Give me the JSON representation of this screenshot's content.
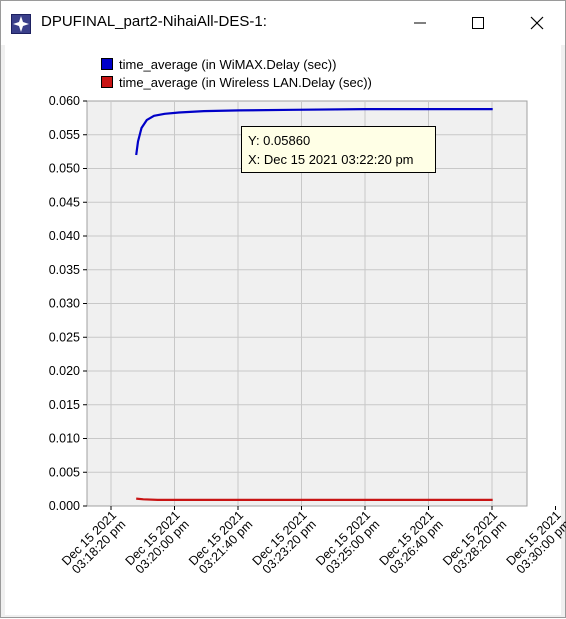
{
  "window": {
    "title": "DPUFINAL_part2-NihaiAll-DES-1:",
    "icon": "opnet-star-icon"
  },
  "legend": [
    {
      "label": "time_average (in WiMAX.Delay (sec))",
      "color": "#0000c8"
    },
    {
      "label": "time_average (in Wireless LAN.Delay (sec))",
      "color": "#c81414"
    }
  ],
  "tooltip": {
    "y_text": "Y: 0.05860",
    "x_text": "X: Dec 15 2021 03:22:20 pm"
  },
  "chart_data": {
    "type": "line",
    "ylim": [
      0,
      0.06
    ],
    "yticks": [
      "0.060",
      "0.055",
      "0.050",
      "0.045",
      "0.040",
      "0.035",
      "0.030",
      "0.025",
      "0.020",
      "0.015",
      "0.010",
      "0.005",
      "0.000"
    ],
    "xticks": [
      [
        "Dec 15 2021",
        "03:18:20 pm"
      ],
      [
        "Dec 15 2021",
        "03:20:00 pm"
      ],
      [
        "Dec 15 2021",
        "03:21:40 pm"
      ],
      [
        "Dec 15 2021",
        "03:23:20 pm"
      ],
      [
        "Dec 15 2021",
        "03:25:00 pm"
      ],
      [
        "Dec 15 2021",
        "03:26:40 pm"
      ],
      [
        "Dec 15 2021",
        "03:28:20 pm"
      ],
      [
        "Dec 15 2021",
        "03:30:00 pm"
      ]
    ],
    "xlim_minutes": [
      18.333,
      30.0
    ],
    "series": [
      {
        "name": "time_average (in WiMAX.Delay (sec))",
        "color": "#0000c8",
        "x_minutes": [
          19.6,
          19.65,
          19.75,
          19.9,
          20.1,
          20.4,
          20.8,
          21.5,
          22.5,
          24,
          26,
          28,
          29.6
        ],
        "values": [
          0.052,
          0.054,
          0.056,
          0.0572,
          0.0578,
          0.0581,
          0.0583,
          0.0585,
          0.0586,
          0.0587,
          0.0588,
          0.0588,
          0.0588
        ]
      },
      {
        "name": "time_average (in Wireless LAN.Delay (sec))",
        "color": "#c81414",
        "x_minutes": [
          19.6,
          19.8,
          20.2,
          21,
          23,
          26,
          29.6
        ],
        "values": [
          0.0011,
          0.001,
          0.0009,
          0.0009,
          0.0009,
          0.0009,
          0.0009
        ]
      }
    ]
  }
}
